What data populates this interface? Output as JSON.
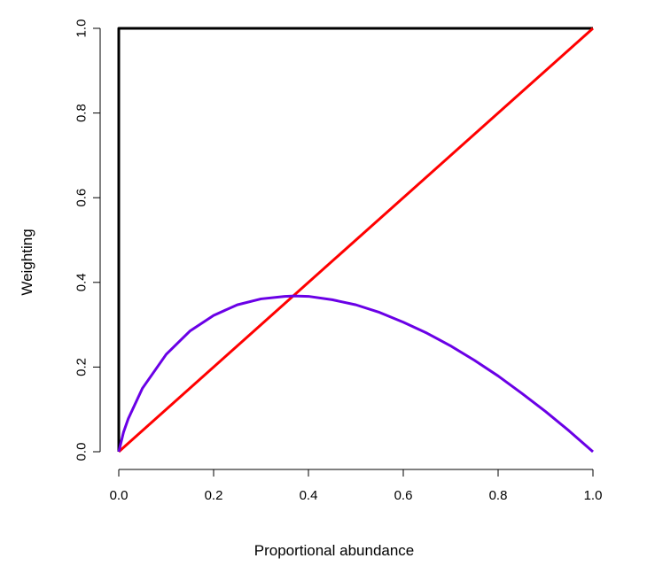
{
  "chart_data": {
    "type": "line",
    "title": "",
    "xlabel": "Proportional abundance",
    "ylabel": "Weighting",
    "xlim": [
      0,
      1
    ],
    "ylim": [
      0,
      1
    ],
    "x_ticks": [
      "0.0",
      "0.2",
      "0.4",
      "0.6",
      "0.8",
      "1.0"
    ],
    "y_ticks": [
      "0.0",
      "0.2",
      "0.4",
      "0.6",
      "0.8",
      "1.0"
    ],
    "grid": false,
    "legend": "none",
    "series": [
      {
        "color": "#000000",
        "x": [
          0,
          0,
          1
        ],
        "y": [
          0,
          1,
          1
        ]
      },
      {
        "color": "#ff0000",
        "x": [
          0,
          1
        ],
        "y": [
          0,
          1
        ]
      },
      {
        "color": "#6a00e6",
        "x": [
          0,
          0.01,
          0.02,
          0.05,
          0.1,
          0.15,
          0.2,
          0.25,
          0.3,
          0.35,
          0.37,
          0.4,
          0.45,
          0.5,
          0.55,
          0.6,
          0.65,
          0.7,
          0.75,
          0.8,
          0.85,
          0.9,
          0.95,
          1.0
        ],
        "y": [
          0,
          0.046,
          0.078,
          0.15,
          0.23,
          0.285,
          0.322,
          0.347,
          0.361,
          0.367,
          0.368,
          0.367,
          0.359,
          0.347,
          0.329,
          0.306,
          0.28,
          0.25,
          0.216,
          0.179,
          0.138,
          0.095,
          0.049,
          0.0
        ]
      }
    ]
  }
}
